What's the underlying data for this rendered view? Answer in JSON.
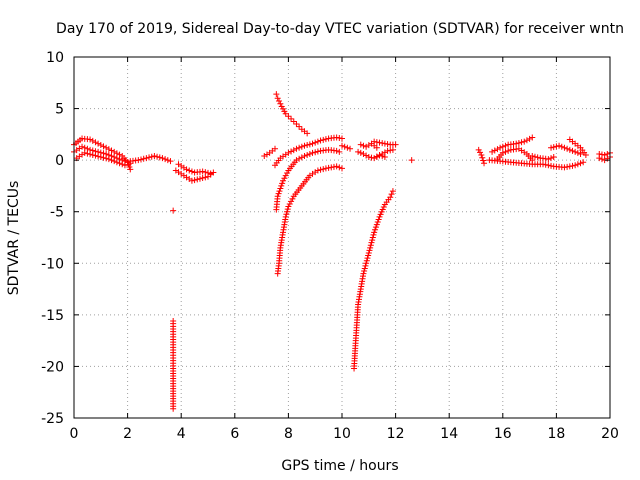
{
  "chart_data": {
    "type": "scatter",
    "title": "Day 170 of 2019, Sidereal Day-to-day VTEC variation (SDTVAR) for receiver wntn",
    "xlabel": "GPS time / hours",
    "ylabel": "SDTVAR / TECUs",
    "xlim": [
      0,
      20
    ],
    "ylim": [
      -25,
      10
    ],
    "xticks": [
      0,
      2,
      4,
      6,
      8,
      10,
      12,
      14,
      16,
      18,
      20
    ],
    "yticks": [
      -25,
      -20,
      -15,
      -10,
      -5,
      0,
      5,
      10
    ],
    "grid": true,
    "marker": "+",
    "series": [
      {
        "name": "SDTVAR",
        "color": "#ff0000",
        "segments": [
          {
            "x": [
              0.0,
              0.3,
              0.6,
              0.9,
              1.2,
              1.5,
              1.8,
              2.0,
              2.1
            ],
            "y": [
              1.5,
              2.1,
              2.0,
              1.6,
              1.2,
              0.8,
              0.4,
              -0.2,
              -0.9
            ]
          },
          {
            "x": [
              0.0,
              0.3,
              0.6,
              0.9,
              1.2,
              1.5,
              1.8,
              2.1
            ],
            "y": [
              0.8,
              1.3,
              1.0,
              0.8,
              0.6,
              0.3,
              0.0,
              -0.3
            ]
          },
          {
            "x": [
              0.1,
              0.4,
              0.7,
              1.0,
              1.3,
              1.6,
              1.9
            ],
            "y": [
              0.2,
              0.7,
              0.5,
              0.3,
              0.1,
              -0.2,
              -0.5
            ]
          },
          {
            "x": [
              2.1,
              2.4,
              2.7,
              3.0,
              3.3,
              3.6
            ],
            "y": [
              -0.1,
              0.0,
              0.2,
              0.4,
              0.2,
              -0.1
            ]
          },
          {
            "x": [
              3.8,
              4.1,
              4.4,
              4.7,
              5.0,
              5.2
            ],
            "y": [
              -1.0,
              -1.5,
              -2.0,
              -1.8,
              -1.6,
              -1.2
            ]
          },
          {
            "x": [
              3.9,
              4.2,
              4.5,
              4.8,
              5.1
            ],
            "y": [
              -0.4,
              -0.9,
              -1.2,
              -1.1,
              -1.3
            ]
          },
          {
            "x": [
              3.7,
              3.7,
              3.7,
              3.7
            ],
            "y": [
              -4.9,
              -15.6,
              -20.2,
              -24.1
            ]
          },
          {
            "x": [
              7.1,
              7.3,
              7.5
            ],
            "y": [
              0.4,
              0.7,
              1.1
            ]
          },
          {
            "x": [
              7.55,
              7.6,
              7.75,
              7.9,
              8.1,
              8.3,
              8.5,
              8.7
            ],
            "y": [
              6.4,
              6.0,
              5.2,
              4.5,
              4.0,
              3.5,
              3.0,
              2.6
            ]
          },
          {
            "x": [
              7.5,
              7.7,
              8.0,
              8.3,
              8.6,
              8.9,
              9.2,
              9.5,
              9.8,
              10.0
            ],
            "y": [
              -0.5,
              0.2,
              0.7,
              1.1,
              1.4,
              1.6,
              1.9,
              2.1,
              2.2,
              2.1
            ]
          },
          {
            "x": [
              7.55,
              7.6,
              7.8,
              8.0,
              8.3,
              8.6,
              8.9,
              9.2,
              9.5,
              9.8,
              9.9
            ],
            "y": [
              -4.8,
              -3.5,
              -2.0,
              -1.0,
              0.0,
              0.4,
              0.7,
              0.9,
              1.0,
              0.9,
              0.8
            ]
          },
          {
            "x": [
              7.6,
              7.65,
              7.7,
              7.8,
              7.9,
              8.0,
              8.2,
              8.5,
              8.8,
              9.1,
              9.4,
              9.8,
              10.0
            ],
            "y": [
              -11.0,
              -10.0,
              -8.5,
              -7.0,
              -5.5,
              -4.5,
              -3.5,
              -2.5,
              -1.5,
              -1.0,
              -0.8,
              -0.6,
              -0.8
            ]
          },
          {
            "x": [
              10.0,
              10.3
            ],
            "y": [
              1.4,
              1.1
            ]
          },
          {
            "x": [
              10.45,
              10.5,
              10.55,
              10.6,
              10.7,
              10.8,
              10.9,
              11.0,
              11.2,
              11.4,
              11.6,
              11.8,
              11.9
            ],
            "y": [
              -20.2,
              -18.0,
              -16.0,
              -14.0,
              -12.5,
              -11.0,
              -10.0,
              -9.0,
              -7.0,
              -5.5,
              -4.3,
              -3.6,
              -3.0
            ]
          },
          {
            "x": [
              10.7,
              10.9,
              11.1,
              11.3
            ],
            "y": [
              1.5,
              1.3,
              1.6,
              1.2
            ]
          },
          {
            "x": [
              11.2,
              11.4,
              11.6,
              11.8,
              12.0
            ],
            "y": [
              1.8,
              1.7,
              1.6,
              1.5,
              1.5
            ]
          },
          {
            "x": [
              10.6,
              10.8,
              11.0,
              11.2,
              11.4,
              11.6
            ],
            "y": [
              0.8,
              0.6,
              0.3,
              0.2,
              0.5,
              0.3
            ]
          },
          {
            "x": [
              11.3,
              11.5,
              11.7,
              11.9
            ],
            "y": [
              0.3,
              0.6,
              0.9,
              1.0
            ]
          },
          {
            "x": [
              12.6
            ],
            "y": [
              0.0
            ]
          },
          {
            "x": [
              15.1,
              15.2,
              15.3
            ],
            "y": [
              1.0,
              0.5,
              -0.3
            ]
          },
          {
            "x": [
              15.6,
              15.9,
              16.2,
              16.5,
              16.8,
              17.1
            ],
            "y": [
              0.8,
              1.2,
              1.5,
              1.6,
              1.8,
              2.2
            ]
          },
          {
            "x": [
              15.8,
              16.0,
              16.3,
              16.6,
              16.9,
              17.1
            ],
            "y": [
              0.1,
              0.7,
              1.0,
              1.1,
              0.6,
              0.0
            ]
          },
          {
            "x": [
              15.5,
              15.9,
              16.3,
              16.7,
              17.1,
              17.5,
              17.9,
              18.3,
              18.7,
              19.0
            ],
            "y": [
              0.0,
              -0.1,
              -0.2,
              -0.3,
              -0.4,
              -0.4,
              -0.6,
              -0.7,
              -0.5,
              -0.2
            ]
          },
          {
            "x": [
              17.1,
              17.4,
              17.7,
              17.9
            ],
            "y": [
              0.4,
              0.2,
              0.1,
              0.3
            ]
          },
          {
            "x": [
              17.8,
              18.1,
              18.4,
              18.7,
              18.9
            ],
            "y": [
              1.2,
              1.4,
              1.1,
              0.8,
              0.6
            ]
          },
          {
            "x": [
              18.5,
              18.7,
              18.9,
              19.1
            ],
            "y": [
              2.0,
              1.6,
              1.2,
              0.5
            ]
          },
          {
            "x": [
              19.6,
              19.8,
              20.0
            ],
            "y": [
              0.6,
              0.5,
              0.7
            ]
          },
          {
            "x": [
              19.6,
              19.8,
              20.0
            ],
            "y": [
              0.2,
              0.0,
              0.3
            ]
          }
        ]
      }
    ]
  }
}
